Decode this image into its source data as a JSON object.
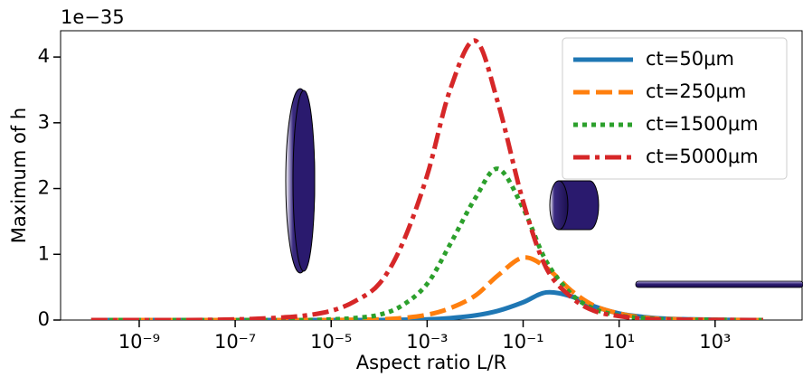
{
  "chart_data": {
    "type": "line",
    "xlabel": "Aspect ratio L/R",
    "ylabel": "Maximum of h",
    "y_offset_label": "1e−35",
    "xscale": "log",
    "legend": "upper right",
    "x": [
      1e-10,
      1e-09,
      1e-08,
      1e-07,
      3e-07,
      1e-06,
      3e-06,
      1e-05,
      3e-05,
      0.0001,
      0.0003,
      0.001,
      0.003,
      0.01,
      0.03,
      0.1,
      0.3,
      1,
      3,
      10,
      30,
      100,
      1000,
      10000
    ],
    "series": [
      {
        "name": "ct=50μm",
        "color": "#1f77b4",
        "linestyle": "solid",
        "values": [
          0,
          0,
          0,
          0,
          0,
          0,
          0,
          0,
          0,
          0,
          0.005,
          0.01,
          0.03,
          0.07,
          0.14,
          0.27,
          0.42,
          0.36,
          0.21,
          0.1,
          0.05,
          0.02,
          0.005,
          0
        ]
      },
      {
        "name": "ct=250μm",
        "color": "#ff7f0e",
        "linestyle": "dashed",
        "values": [
          0,
          0,
          0,
          0,
          0,
          0,
          0,
          0,
          0.005,
          0.01,
          0.03,
          0.08,
          0.18,
          0.37,
          0.68,
          0.95,
          0.8,
          0.45,
          0.22,
          0.1,
          0.04,
          0.015,
          0.003,
          0
        ]
      },
      {
        "name": "ct=1500μm",
        "color": "#2ca02c",
        "linestyle": "dotted",
        "values": [
          0,
          0,
          0,
          0,
          0,
          0,
          0,
          0.01,
          0.03,
          0.08,
          0.22,
          0.55,
          1.15,
          1.85,
          2.3,
          1.7,
          0.9,
          0.4,
          0.17,
          0.07,
          0.03,
          0.01,
          0.002,
          0
        ]
      },
      {
        "name": "ct=5000μm",
        "color": "#d62728",
        "linestyle": "dashdot",
        "values": [
          0,
          0,
          0,
          0.01,
          0.02,
          0.04,
          0.07,
          0.14,
          0.28,
          0.55,
          1.15,
          2.2,
          3.5,
          4.25,
          3.3,
          1.8,
          0.8,
          0.35,
          0.14,
          0.06,
          0.02,
          0.008,
          0.002,
          0
        ]
      }
    ],
    "xlim": [
      2.3e-11,
      65000
    ],
    "xticks": [
      {
        "value": 1e-09,
        "label": "10⁻⁹"
      },
      {
        "value": 1e-07,
        "label": "10⁻⁷"
      },
      {
        "value": 1e-05,
        "label": "10⁻⁵"
      },
      {
        "value": 0.001,
        "label": "10⁻³"
      },
      {
        "value": 0.1,
        "label": "10⁻¹"
      },
      {
        "value": 10,
        "label": "10¹"
      },
      {
        "value": 1000,
        "label": "10³"
      }
    ],
    "ylim": [
      0,
      4.4
    ],
    "yticks": [
      0,
      1,
      2,
      3,
      4
    ]
  }
}
